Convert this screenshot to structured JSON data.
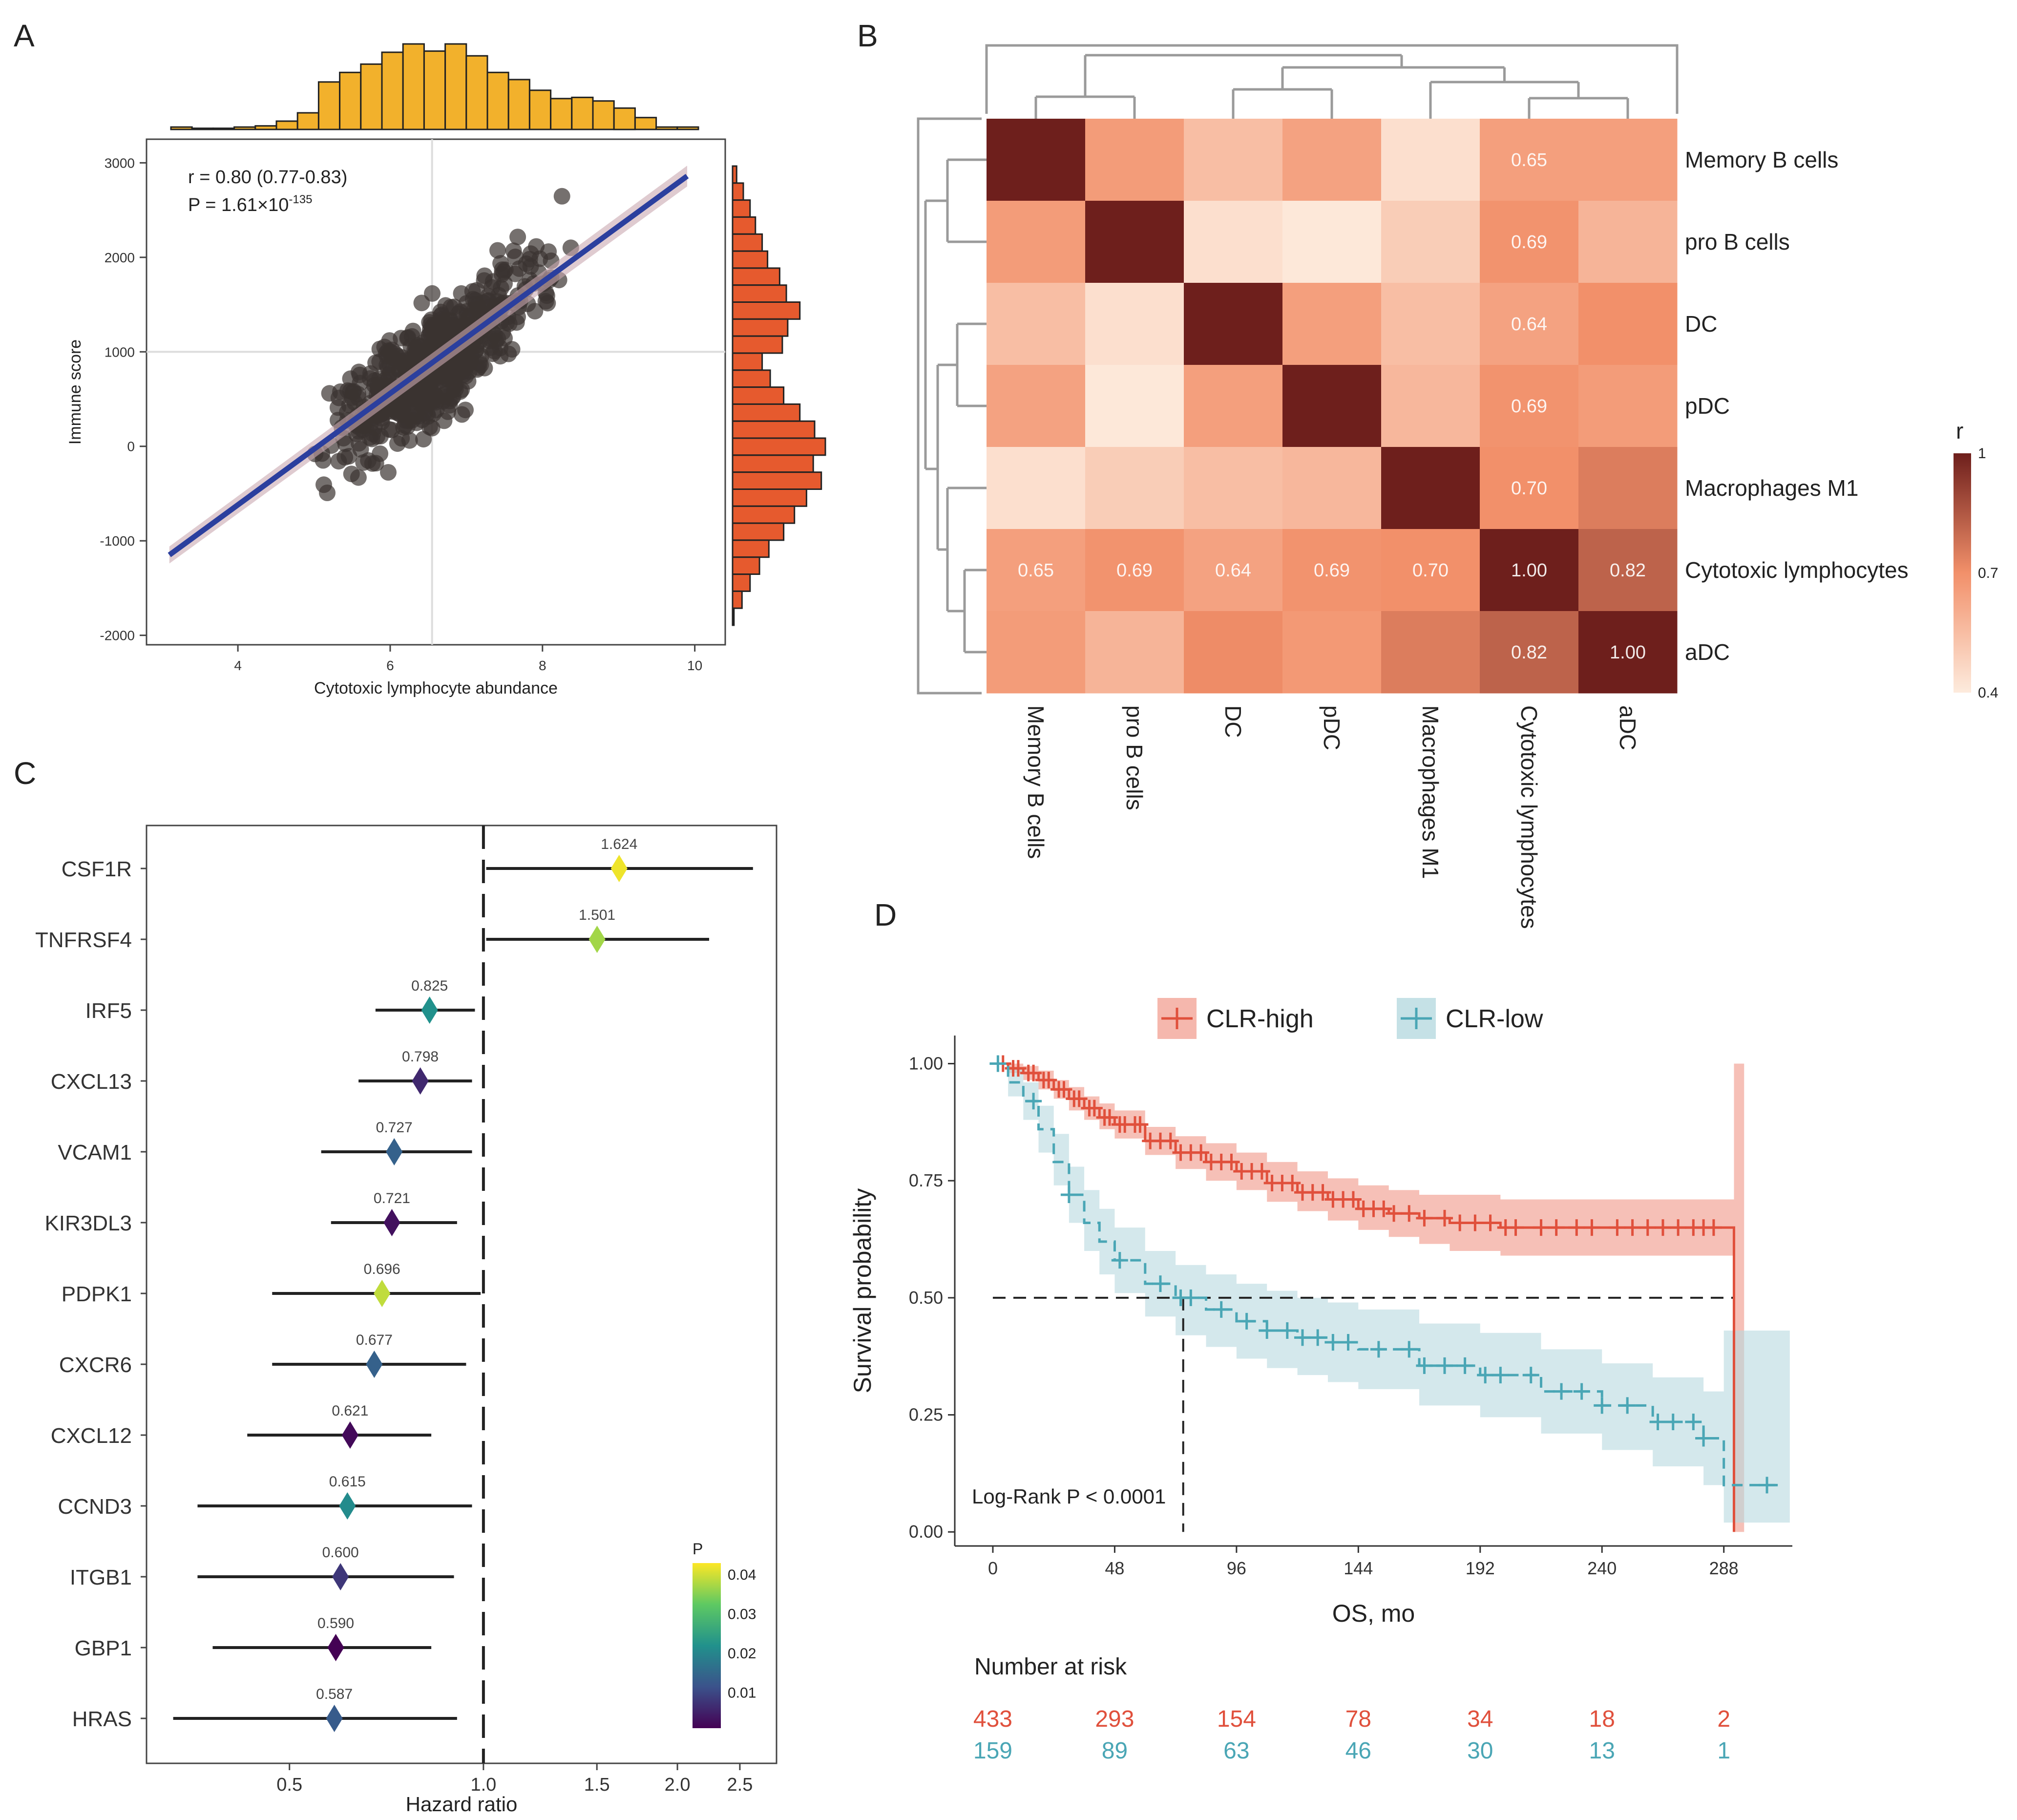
{
  "colors": {
    "hist_top": "#F2B12C",
    "hist_right": "#E65A2E",
    "scatter_point": "#3B3330",
    "regression_line": "#2B3F9E",
    "ci_band": "#C9A8B0",
    "km_high": "#E0503C",
    "km_low": "#4AA6B5",
    "km_high_band": "#F2A598",
    "km_low_band": "#B7D9E0",
    "heat_low": "#FDEBDD",
    "heat_mid": "#F2906A",
    "heat_high": "#6E1F1C",
    "dendro": "#9A9A9A"
  },
  "panels": {
    "A": {
      "letter": "A",
      "annotation_r": "r = 0.80 (0.77-0.83)",
      "annotation_p_prefix": "P = 1.61×10",
      "annotation_p_exp": "-135"
    },
    "B": {
      "letter": "B"
    },
    "C": {
      "letter": "C"
    },
    "D": {
      "letter": "D",
      "logrank": "Log-Rank P < 0.0001",
      "risk_title": "Number at risk"
    }
  },
  "chart_data": [
    {
      "id": "A",
      "type": "scatter",
      "xlabel": "Cytotoxic lymphocyte abundance",
      "ylabel": "Immune score",
      "xlim": [
        2.8,
        10.4
      ],
      "ylim": [
        -2100,
        3250
      ],
      "xticks": [
        4,
        6,
        8,
        10
      ],
      "yticks": [
        -2000,
        -1000,
        0,
        1000,
        2000,
        3000
      ],
      "reference_lines": {
        "x": 6.55,
        "y": 1000
      },
      "regression": {
        "x": [
          3.1,
          9.9
        ],
        "y": [
          -1150,
          2860
        ]
      },
      "n_points": 600,
      "top_histogram_counts": [
        2,
        1,
        1,
        2,
        3,
        7,
        14,
        40,
        48,
        55,
        65,
        72,
        66,
        72,
        62,
        48,
        42,
        33,
        26,
        27,
        24,
        18,
        10,
        2,
        2
      ],
      "right_histogram_counts": [
        3,
        8,
        13,
        17,
        22,
        26,
        35,
        40,
        50,
        41,
        37,
        22,
        28,
        38,
        50,
        61,
        69,
        60,
        66,
        55,
        46,
        38,
        27,
        20,
        13,
        7,
        1
      ]
    },
    {
      "id": "B",
      "type": "heatmap",
      "rows": [
        "Memory B cells",
        "pro B cells",
        "DC",
        "pDC",
        "Macrophages M1",
        "Cytotoxic lymphocytes",
        "aDC"
      ],
      "cols": [
        "Memory B cells",
        "pro B cells",
        "DC",
        "pDC",
        "Macrophages M1",
        "Cytotoxic lymphocytes",
        "aDC"
      ],
      "values": [
        [
          1.0,
          0.66,
          0.55,
          0.64,
          0.44,
          0.65,
          0.65
        ],
        [
          0.66,
          1.0,
          0.44,
          0.41,
          0.5,
          0.69,
          0.58
        ],
        [
          0.55,
          0.44,
          1.0,
          0.65,
          0.55,
          0.64,
          0.7
        ],
        [
          0.64,
          0.41,
          0.65,
          1.0,
          0.57,
          0.69,
          0.66
        ],
        [
          0.44,
          0.5,
          0.55,
          0.57,
          1.0,
          0.7,
          0.75
        ],
        [
          0.65,
          0.69,
          0.64,
          0.69,
          0.7,
          1.0,
          0.82
        ],
        [
          0.66,
          0.58,
          0.71,
          0.67,
          0.75,
          0.82,
          1.0
        ]
      ],
      "labels": [
        [
          null,
          null,
          null,
          null,
          null,
          "0.65",
          null
        ],
        [
          null,
          null,
          null,
          null,
          null,
          "0.69",
          null
        ],
        [
          null,
          null,
          null,
          null,
          null,
          "0.64",
          null
        ],
        [
          null,
          null,
          null,
          null,
          null,
          "0.69",
          null
        ],
        [
          null,
          null,
          null,
          null,
          null,
          "0.70",
          null
        ],
        [
          "0.65",
          "0.69",
          "0.64",
          "0.69",
          "0.70",
          "1.00",
          "0.82"
        ],
        [
          null,
          null,
          null,
          null,
          null,
          "0.82",
          "1.00"
        ]
      ],
      "legend_title": "r",
      "legend_ticks": [
        "1",
        "0.7",
        "0.4"
      ],
      "legend_range": [
        0.4,
        1.0
      ]
    },
    {
      "id": "C",
      "type": "forest",
      "xlabel": "Hazard ratio",
      "xscale": "log",
      "xlim": [
        0.3,
        2.85
      ],
      "xticks": [
        0.5,
        1.0,
        1.5,
        2.0,
        2.5
      ],
      "xtick_labels": [
        "0.5",
        "1.0",
        "1.5",
        "2.0",
        "2.5"
      ],
      "reference": 1.0,
      "genes": [
        "CSF1R",
        "TNFRSF4",
        "IRF5",
        "CXCL13",
        "VCAM1",
        "KIR3DL3",
        "PDPK1",
        "CXCR6",
        "CXCL12",
        "CCND3",
        "ITGB1",
        "GBP1",
        "HRAS"
      ],
      "hr": [
        1.624,
        1.501,
        0.825,
        0.798,
        0.727,
        0.721,
        0.696,
        0.677,
        0.621,
        0.615,
        0.6,
        0.59,
        0.587
      ],
      "hr_labels": [
        "1.624",
        "1.501",
        "0.825",
        "0.798",
        "0.727",
        "0.721",
        "0.696",
        "0.677",
        "0.621",
        "0.615",
        "0.600",
        "0.590",
        "0.587"
      ],
      "lower": [
        1.01,
        1.01,
        0.68,
        0.64,
        0.56,
        0.58,
        0.47,
        0.47,
        0.43,
        0.36,
        0.36,
        0.38,
        0.33
      ],
      "upper": [
        2.62,
        2.24,
        0.97,
        0.96,
        0.96,
        0.91,
        0.99,
        0.94,
        0.83,
        0.96,
        0.9,
        0.83,
        0.91
      ],
      "p": [
        0.042,
        0.037,
        0.022,
        0.006,
        0.014,
        0.003,
        0.039,
        0.014,
        0.002,
        0.021,
        0.008,
        0.001,
        0.013
      ],
      "legend_title": "P",
      "legend_ticks": [
        "0.04",
        "0.03",
        "0.02",
        "0.01"
      ]
    },
    {
      "id": "D",
      "type": "line",
      "subtype": "kaplan-meier",
      "xlabel": "OS, mo",
      "ylabel": "Survival probability",
      "xlim": [
        -15,
        315
      ],
      "ylim": [
        -0.03,
        1.06
      ],
      "xticks": [
        0,
        48,
        96,
        144,
        192,
        240,
        288
      ],
      "yticks": [
        0.0,
        0.25,
        0.5,
        0.75,
        1.0
      ],
      "ytick_labels": [
        "0.00",
        "0.25",
        "0.50",
        "0.75",
        "1.00"
      ],
      "legend": [
        "CLR-high",
        "CLR-low"
      ],
      "median_line": {
        "y": 0.5,
        "x": 75
      },
      "series": [
        {
          "name": "CLR-high",
          "x": [
            0,
            6,
            12,
            18,
            24,
            30,
            36,
            42,
            48,
            60,
            72,
            84,
            96,
            108,
            120,
            132,
            144,
            156,
            168,
            180,
            200,
            240,
            270,
            290,
            292
          ],
          "y": [
            1.0,
            0.99,
            0.98,
            0.965,
            0.945,
            0.925,
            0.905,
            0.885,
            0.87,
            0.835,
            0.81,
            0.79,
            0.77,
            0.745,
            0.725,
            0.71,
            0.69,
            0.68,
            0.67,
            0.66,
            0.65,
            0.65,
            0.65,
            0.65,
            0.0
          ],
          "ci_lower": [
            1.0,
            0.98,
            0.965,
            0.945,
            0.925,
            0.9,
            0.88,
            0.86,
            0.84,
            0.805,
            0.775,
            0.75,
            0.73,
            0.705,
            0.685,
            0.665,
            0.645,
            0.63,
            0.615,
            0.6,
            0.59,
            0.59,
            0.59,
            0.59,
            0.0
          ],
          "ci_upper": [
            1.0,
            1.0,
            0.995,
            0.985,
            0.965,
            0.95,
            0.93,
            0.915,
            0.9,
            0.865,
            0.845,
            0.83,
            0.81,
            0.79,
            0.77,
            0.755,
            0.74,
            0.73,
            0.72,
            0.72,
            0.71,
            0.71,
            0.71,
            0.71,
            1.0
          ],
          "censor_x": [
            4,
            8,
            10,
            14,
            16,
            20,
            22,
            26,
            28,
            32,
            34,
            38,
            40,
            44,
            46,
            50,
            52,
            56,
            58,
            62,
            66,
            70,
            74,
            78,
            82,
            86,
            90,
            94,
            98,
            102,
            106,
            110,
            114,
            118,
            122,
            126,
            130,
            134,
            138,
            142,
            146,
            150,
            154,
            158,
            164,
            170,
            178,
            184,
            190,
            196,
            202,
            206,
            216,
            222,
            230,
            236,
            246,
            252,
            258,
            264,
            270,
            276,
            280,
            284
          ],
          "risk": [
            "433",
            "293",
            "154",
            "78",
            "34",
            "18",
            "2"
          ]
        },
        {
          "name": "CLR-low",
          "x": [
            0,
            6,
            12,
            18,
            24,
            30,
            36,
            42,
            48,
            60,
            72,
            84,
            96,
            108,
            120,
            132,
            144,
            168,
            192,
            216,
            240,
            260,
            280,
            288,
            300,
            310
          ],
          "y": [
            1.0,
            0.96,
            0.92,
            0.86,
            0.79,
            0.72,
            0.66,
            0.62,
            0.58,
            0.53,
            0.5,
            0.475,
            0.45,
            0.43,
            0.415,
            0.405,
            0.39,
            0.355,
            0.335,
            0.3,
            0.27,
            0.235,
            0.2,
            0.1,
            0.1,
            0.105
          ],
          "ci_lower": [
            1.0,
            0.93,
            0.88,
            0.81,
            0.74,
            0.66,
            0.6,
            0.55,
            0.51,
            0.46,
            0.42,
            0.395,
            0.37,
            0.35,
            0.335,
            0.32,
            0.305,
            0.27,
            0.245,
            0.21,
            0.175,
            0.14,
            0.1,
            0.02,
            0.02,
            0.02
          ],
          "ci_upper": [
            1.0,
            0.99,
            0.96,
            0.91,
            0.85,
            0.78,
            0.73,
            0.69,
            0.65,
            0.6,
            0.57,
            0.55,
            0.53,
            0.515,
            0.5,
            0.49,
            0.475,
            0.445,
            0.425,
            0.39,
            0.36,
            0.33,
            0.3,
            0.43,
            0.43,
            0.43
          ],
          "censor_x": [
            2,
            16,
            30,
            50,
            66,
            74,
            78,
            90,
            100,
            108,
            116,
            122,
            128,
            134,
            140,
            152,
            164,
            170,
            178,
            186,
            194,
            200,
            212,
            224,
            232,
            240,
            250,
            262,
            268,
            276,
            280,
            305
          ],
          "risk": [
            "159",
            "89",
            "63",
            "46",
            "30",
            "13",
            "1"
          ]
        }
      ],
      "risk_x": [
        0,
        48,
        96,
        144,
        192,
        240,
        288
      ]
    }
  ]
}
